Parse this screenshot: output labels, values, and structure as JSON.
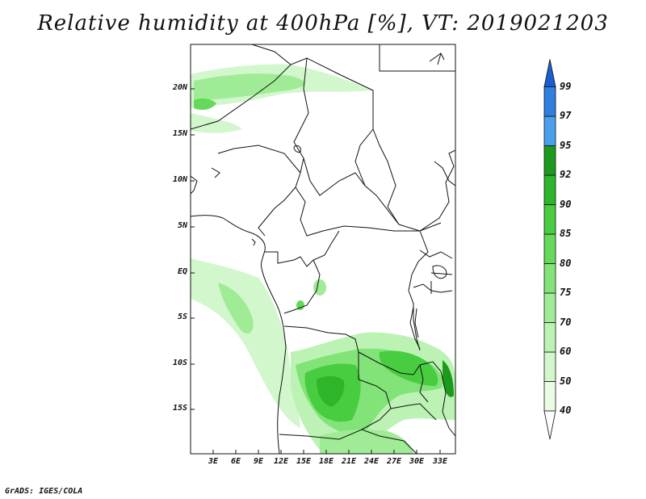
{
  "title": "Relative humidity at 400hPa [%], VT: 2019021203",
  "credit": "GrADS: IGES/COLA",
  "map": {
    "lat_labels": [
      "20N",
      "15N",
      "10N",
      "5N",
      "EQ",
      "5S",
      "10S",
      "15S"
    ],
    "lon_labels": [
      "3E",
      "6E",
      "9E",
      "12E",
      "15E",
      "18E",
      "21E",
      "24E",
      "27E",
      "30E",
      "33E"
    ]
  },
  "colorbar": {
    "levels": [
      "40",
      "50",
      "60",
      "70",
      "75",
      "80",
      "85",
      "90",
      "92",
      "95",
      "97",
      "99"
    ],
    "colors": {
      "40-50": "#eafbe6",
      "50-60": "#d2f7cc",
      "60-70": "#bcf3b4",
      "70-75": "#a0ec96",
      "75-80": "#82e378",
      "80-85": "#64d95a",
      "85-90": "#48cc40",
      "90-92": "#2fb52a",
      "92-95": "#1d9a1c",
      "95-97": "#4aa0ec",
      "97-99": "#2f7fe0",
      "99+": "#1a5fd0"
    }
  }
}
